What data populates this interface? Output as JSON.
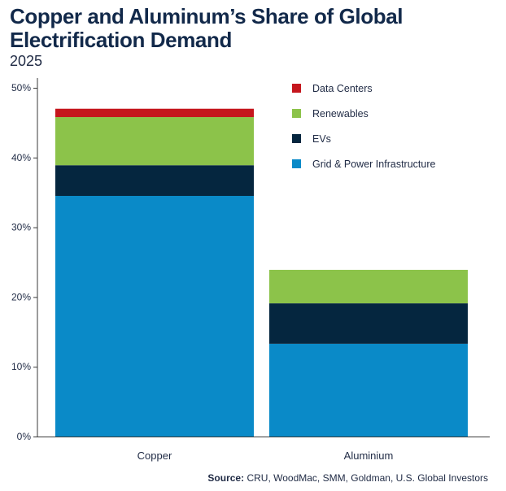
{
  "title": "Copper and Aluminum’s Share of Global Electrification Demand",
  "subtitle": "2025",
  "source": {
    "label": "Source:",
    "text": "CRU, WoodMac, SMM, Goldman, U.S. Global Investors"
  },
  "chart_data": {
    "type": "bar",
    "stacked": true,
    "categories": [
      "Copper",
      "Aluminium"
    ],
    "series": [
      {
        "name": "Grid & Power Infrastructure",
        "color": "#0a8ac8",
        "values": [
          34.5,
          13.3
        ]
      },
      {
        "name": "EVs",
        "color": "#05263f",
        "values": [
          4.4,
          5.8
        ]
      },
      {
        "name": "Renewables",
        "color": "#8cc34a",
        "values": [
          6.9,
          4.8
        ]
      },
      {
        "name": "Data Centers",
        "color": "#c5161d",
        "values": [
          1.2,
          0
        ]
      }
    ],
    "legend_order": [
      "Data Centers",
      "Renewables",
      "EVs",
      "Grid & Power Infrastructure"
    ],
    "ylim": [
      0,
      50
    ],
    "yticks": [
      "0%",
      "10%",
      "20%",
      "30%",
      "40%",
      "50%"
    ],
    "ytick_values": [
      0,
      10,
      20,
      30,
      40,
      50
    ],
    "xlabel": "",
    "ylabel": "",
    "grid": false,
    "legend_position": "top-right"
  }
}
